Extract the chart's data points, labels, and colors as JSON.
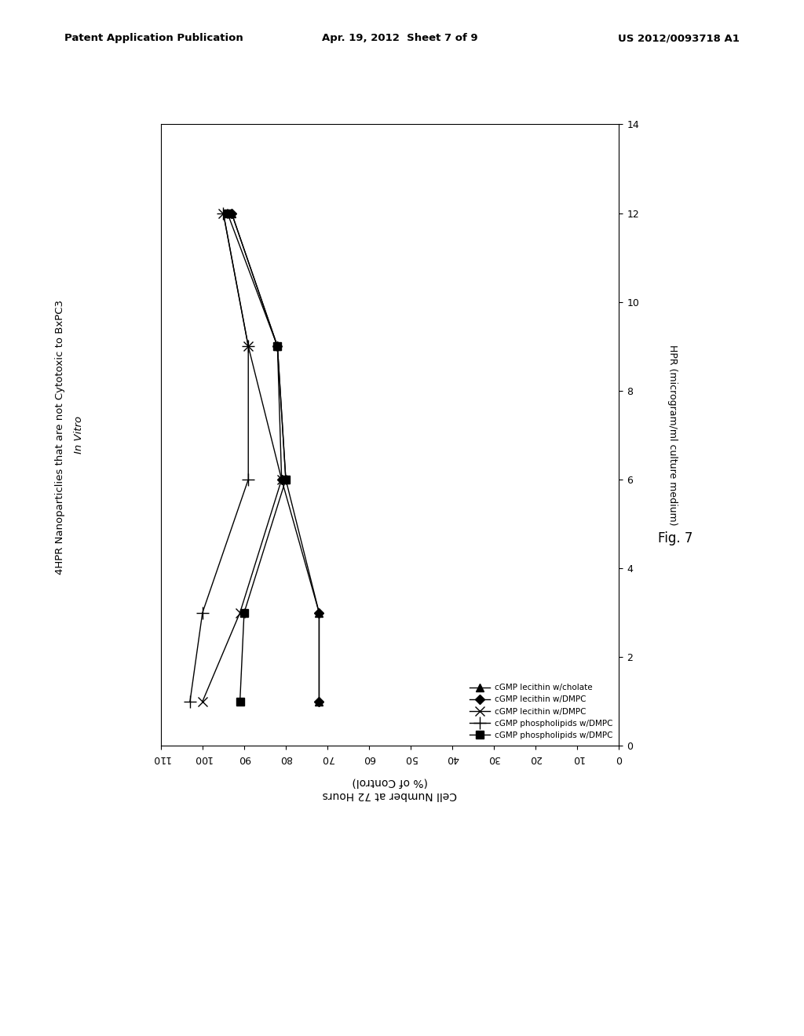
{
  "header_left": "Patent Application Publication",
  "header_center": "Apr. 19, 2012  Sheet 7 of 9",
  "header_right": "US 2012/0093718 A1",
  "fig_label": "Fig. 7",
  "title_normal": "4HPR Nanoparticlies that are not Cytotoxic to BxPC3 ",
  "title_italic": "In Vitro",
  "ylabel_bottom": "Cell Number at 72 Hours",
  "ylabel_bottom2": "(% of Control)",
  "xlabel_right": "HPR (microgram/ml culture medium)",
  "xmin": 0,
  "xmax": 14,
  "ymin": 0,
  "ymax": 110,
  "xticks_right": [
    0,
    2,
    4,
    6,
    8,
    10,
    12,
    14
  ],
  "yticks_bottom": [
    0,
    10,
    20,
    30,
    40,
    50,
    60,
    70,
    80,
    90,
    100,
    110
  ],
  "series": [
    {
      "label": "cGMP lecithin w/cholate",
      "marker": "^",
      "hpr": [
        1,
        3,
        6,
        9,
        12
      ],
      "pct": [
        72,
        72,
        80,
        82,
        93
      ]
    },
    {
      "label": "cGMP lecithin w/DMPC",
      "marker": "D",
      "hpr": [
        1,
        3,
        6,
        9,
        12
      ],
      "pct": [
        72,
        72,
        81,
        82,
        93
      ]
    },
    {
      "label": "cGMP lecithin w/DMPC",
      "marker": "x",
      "hpr": [
        1,
        3,
        6,
        9,
        12
      ],
      "pct": [
        100,
        91,
        81,
        89,
        95
      ]
    },
    {
      "label": "cGMP phospholipids w/DMPC",
      "marker": "+",
      "hpr": [
        1,
        3,
        6,
        9,
        12
      ],
      "pct": [
        103,
        100,
        89,
        89,
        95
      ]
    },
    {
      "label": "cGMP phospholipids w/DMPC",
      "marker": "s",
      "hpr": [
        1,
        3,
        6,
        9,
        12
      ],
      "pct": [
        91,
        90,
        80,
        82,
        94
      ]
    }
  ],
  "legend_entries": [
    {
      "label": "cGMP lecithin w/cholate",
      "marker": "^"
    },
    {
      "label": "cGMP lecithin w/DMPC",
      "marker": "D"
    },
    {
      "label": "cGMP lecithin w/DMPC",
      "marker": "x"
    },
    {
      "label": "cGMP phospholipids w/DMPC",
      "marker": "+"
    },
    {
      "label": "cGMP phospholipids w/DMPC",
      "marker": "s"
    }
  ]
}
